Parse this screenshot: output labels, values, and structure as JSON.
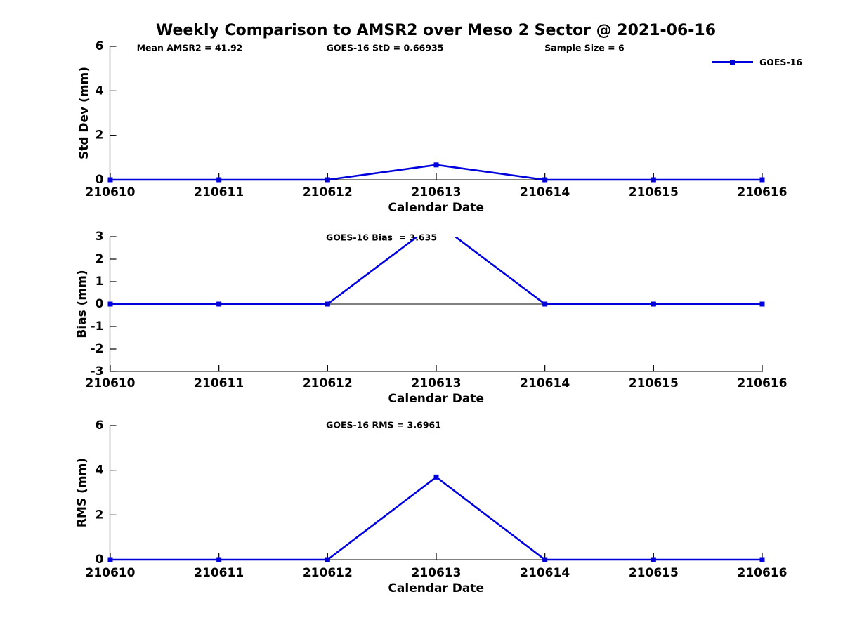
{
  "page": {
    "title": "Weekly Comparison to AMSR2 over Meso 2 Sector @ 2021-06-16",
    "background_color": "#ffffff",
    "axis_color": "#000000",
    "series_color": "#0000dd"
  },
  "legend": {
    "label": "GOES-16",
    "marker": "filled-square",
    "color": "#0000dd",
    "position": "top-right-outside-first-subplot",
    "box": false
  },
  "chart_data": [
    {
      "type": "line",
      "xlabel": "Calendar Date",
      "ylabel": "Std Dev (mm)",
      "x": [
        "210610",
        "210611",
        "210612",
        "210613",
        "210614",
        "210615",
        "210616"
      ],
      "series": [
        {
          "name": "GOES-16",
          "values": [
            0,
            0,
            0,
            0.66935,
            0,
            0,
            0
          ]
        }
      ],
      "ylim": [
        0,
        6
      ],
      "yticks": [
        0,
        2,
        4,
        6
      ],
      "annotations": [
        {
          "text": "Mean AMSR2 = 41.92"
        },
        {
          "text": "GOES-16 StD = 0.66935"
        },
        {
          "text": "Sample Size = 6"
        }
      ],
      "zero_line": true,
      "grid": false
    },
    {
      "type": "line",
      "xlabel": "Calendar Date",
      "ylabel": "Bias (mm)",
      "x": [
        "210610",
        "210611",
        "210612",
        "210613",
        "210614",
        "210615",
        "210616"
      ],
      "series": [
        {
          "name": "GOES-16",
          "values": [
            0,
            0,
            0,
            3.635,
            0,
            0,
            0
          ]
        }
      ],
      "ylim": [
        -3,
        3
      ],
      "yticks": [
        -3,
        -2,
        -1,
        0,
        1,
        2,
        3
      ],
      "annotations": [
        {
          "text": "GOES-16 Bias  = 3.635"
        }
      ],
      "zero_line": true,
      "grid": false,
      "note": "peak at 210613 exceeds ylim and is clipped at top"
    },
    {
      "type": "line",
      "xlabel": "Calendar Date",
      "ylabel": "RMS (mm)",
      "x": [
        "210610",
        "210611",
        "210612",
        "210613",
        "210614",
        "210615",
        "210616"
      ],
      "series": [
        {
          "name": "GOES-16",
          "values": [
            0,
            0,
            0,
            3.6961,
            0,
            0,
            0
          ]
        }
      ],
      "ylim": [
        0,
        6
      ],
      "yticks": [
        0,
        2,
        4,
        6
      ],
      "annotations": [
        {
          "text": "GOES-16 RMS = 3.6961"
        }
      ],
      "zero_line": true,
      "grid": false
    }
  ]
}
